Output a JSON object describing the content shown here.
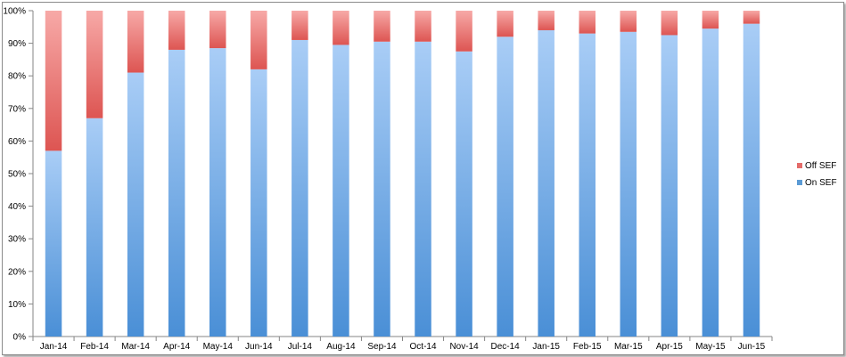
{
  "chart_data": {
    "type": "bar",
    "stacked": true,
    "percent": true,
    "categories": [
      "Jan-14",
      "Feb-14",
      "Mar-14",
      "Apr-14",
      "May-14",
      "Jun-14",
      "Jul-14",
      "Aug-14",
      "Sep-14",
      "Oct-14",
      "Nov-14",
      "Dec-14",
      "Jan-15",
      "Feb-15",
      "Mar-15",
      "Apr-15",
      "May-15",
      "Jun-15"
    ],
    "series": [
      {
        "name": "On SEF",
        "color": "#5b9bd5",
        "values": [
          57,
          67,
          81,
          88,
          88.5,
          82,
          91,
          89.5,
          90.5,
          90.5,
          87.5,
          92,
          94,
          93,
          93.5,
          92.5,
          94.5,
          96
        ]
      },
      {
        "name": "Off SEF",
        "color": "#e46c6a",
        "values": [
          43,
          33,
          19,
          12,
          11.5,
          18,
          9,
          10.5,
          9.5,
          9.5,
          12.5,
          8,
          6,
          7,
          6.5,
          7.5,
          5.5,
          4
        ]
      }
    ],
    "ylim": [
      0,
      100
    ],
    "yticks": [
      "0%",
      "10%",
      "20%",
      "30%",
      "40%",
      "50%",
      "60%",
      "70%",
      "80%",
      "90%",
      "100%"
    ],
    "legend": {
      "position": "right",
      "items": [
        "Off SEF",
        "On SEF"
      ]
    },
    "grid": false,
    "title": "",
    "xlabel": "",
    "ylabel": ""
  }
}
